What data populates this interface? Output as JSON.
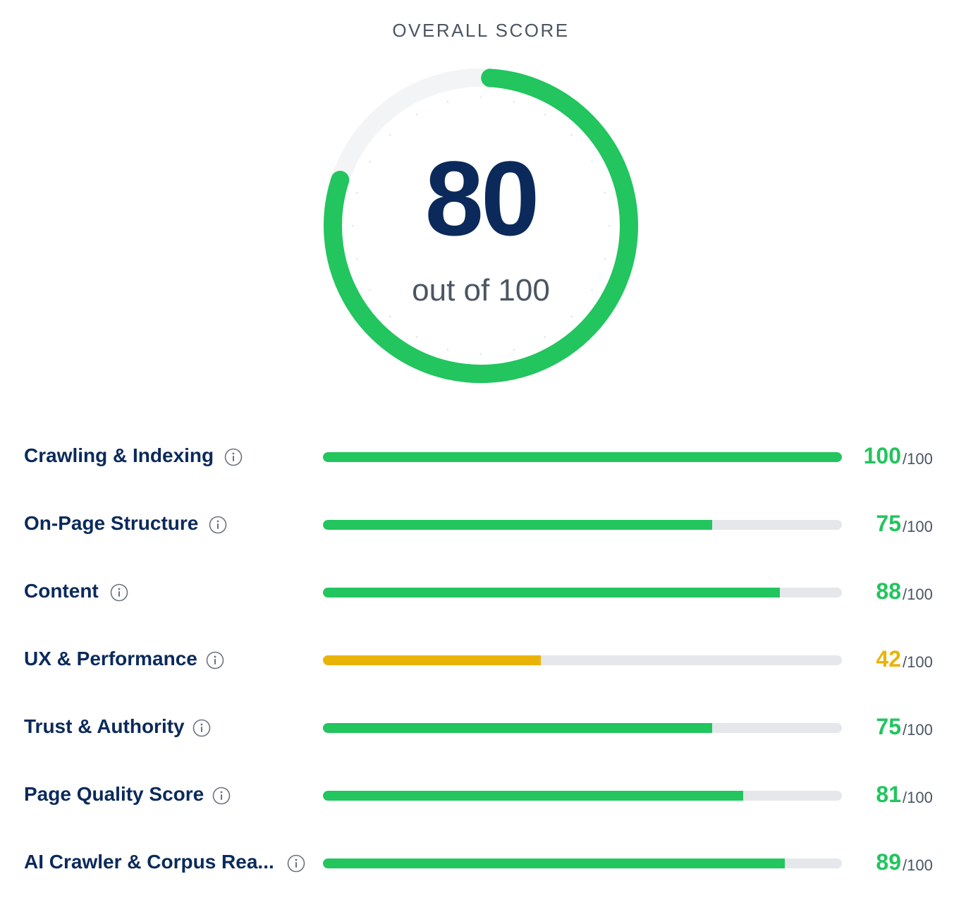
{
  "header": {
    "title": "OVERALL SCORE"
  },
  "overall": {
    "score": "80",
    "value": 80,
    "max": 100,
    "subtitle": "out of 100",
    "color": "#22c55e",
    "track_color": "#f3f4f6"
  },
  "colors": {
    "good": "#22c55e",
    "warning": "#eab308",
    "track": "#e5e7eb",
    "navy": "#0b2a5b"
  },
  "metrics": [
    {
      "label": "Crawling & Indexing",
      "score": "100",
      "value": 100,
      "max_text": "/100",
      "status": "good",
      "icon": "info-icon"
    },
    {
      "label": "On-Page Structure",
      "score": "75",
      "value": 75,
      "max_text": "/100",
      "status": "good",
      "icon": "info-icon"
    },
    {
      "label": "Content",
      "score": "88",
      "value": 88,
      "max_text": "/100",
      "status": "good",
      "icon": "info-icon"
    },
    {
      "label": "UX & Performance",
      "score": "42",
      "value": 42,
      "max_text": "/100",
      "status": "warning",
      "icon": "info-icon"
    },
    {
      "label": "Trust & Authority",
      "score": "75",
      "value": 75,
      "max_text": "/100",
      "status": "good",
      "icon": "info-icon"
    },
    {
      "label": "Page Quality Score",
      "score": "81",
      "value": 81,
      "max_text": "/100",
      "status": "good",
      "icon": "info-icon"
    },
    {
      "label": "AI Crawler & Corpus Rea...",
      "score": "89",
      "value": 89,
      "max_text": "/100",
      "status": "good",
      "icon": "info-icon"
    }
  ]
}
